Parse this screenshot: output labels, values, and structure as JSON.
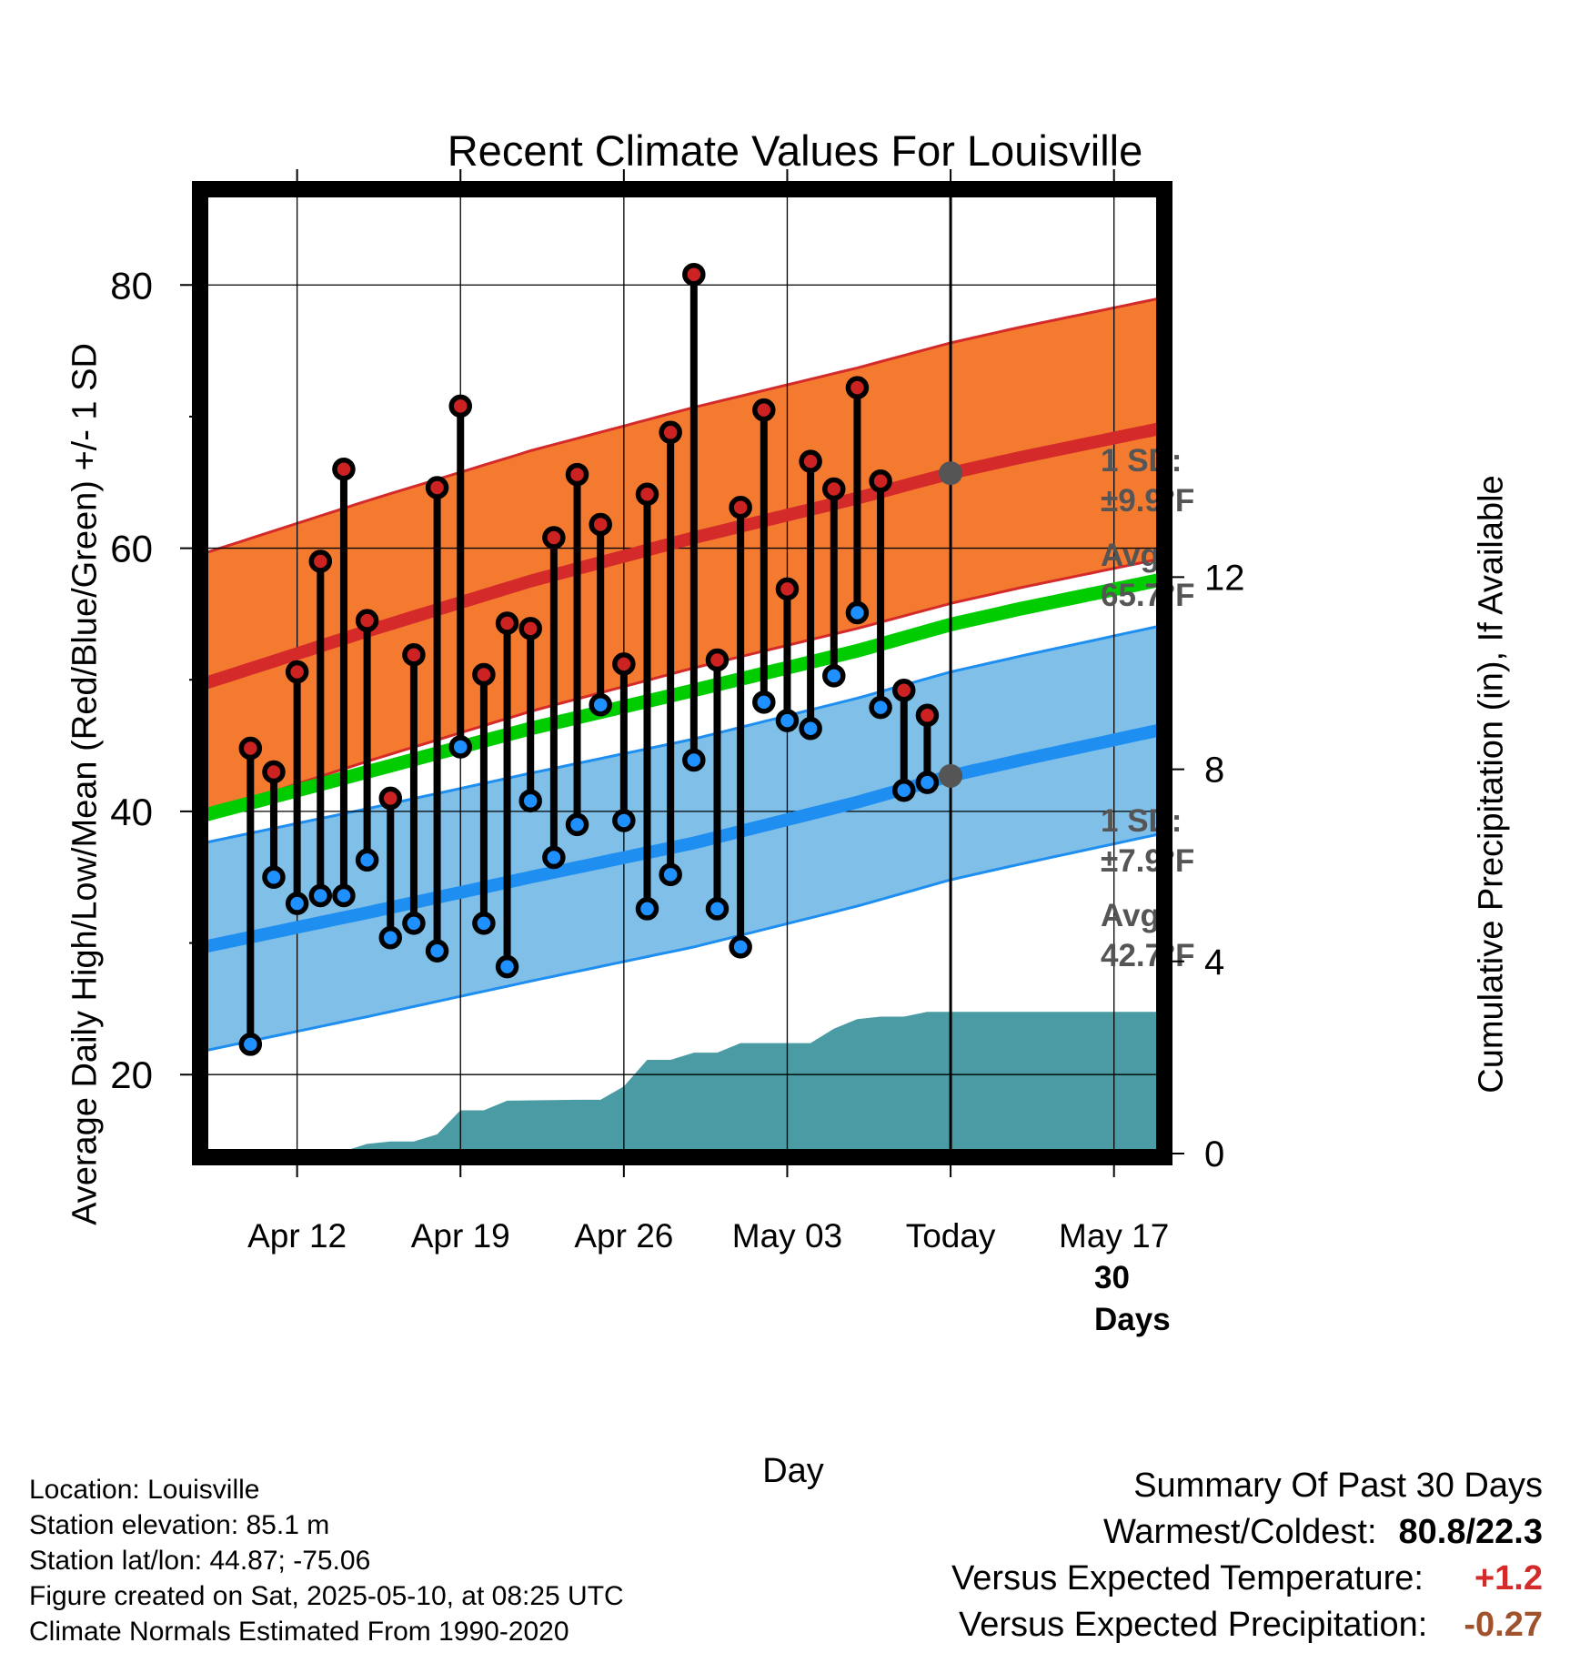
{
  "title": "Recent Climate Values For Louisville",
  "left_axis_label": "Average Daily High/Low/Mean (Red/Blue/Green) +/- 1 SD",
  "right_axis_label": "Cumulative Precipitation (in), If Available",
  "x_axis_label": "Day",
  "colors": {
    "high_band": "#f47a30",
    "high_line": "#d42a2a",
    "low_band": "#80c0e8",
    "low_line": "#1e8ef0",
    "mean_line": "#00cc00",
    "precip": "#4a9ba4",
    "high_marker": "#cc2222",
    "low_marker": "#1e90ff",
    "annotation_text": "#555555"
  },
  "annotations": {
    "high_sd": "1 SD:",
    "high_sd_value": "±9.9°F",
    "high_avg": "Avg:",
    "high_avg_value": "65.7°F",
    "low_sd": "1 SD:",
    "low_sd_value": "±7.9°F",
    "low_avg": "Avg:",
    "low_avg_value": "42.7°F",
    "days_count": "30",
    "days_word": "Days"
  },
  "info": {
    "location": "Location: Louisville",
    "elevation": "Station elevation: 85.1 m",
    "latlon": "Station lat/lon: 44.87; -75.06",
    "created": "Figure created on Sat, 2025-05-10, at 08:25 UTC",
    "normals": "Climate Normals Estimated From 1990-2020"
  },
  "summary": {
    "title": "Summary Of Past 30 Days",
    "warmest_coldest_label": "Warmest/Coldest:",
    "warmest_coldest_value": "80.8/22.3",
    "temp_label": "Versus Expected Temperature:",
    "temp_value": "+1.2",
    "precip_label": "Versus Expected Precipitation:",
    "precip_value": "-0.27"
  },
  "chart_data": {
    "type": "line",
    "x_unit": "day",
    "x_ticks": [
      {
        "date": "2025-04-12",
        "label": "Apr 12"
      },
      {
        "date": "2025-04-19",
        "label": "Apr 19"
      },
      {
        "date": "2025-04-26",
        "label": "Apr 26"
      },
      {
        "date": "2025-05-03",
        "label": "May 03"
      },
      {
        "date": "2025-05-10",
        "label": "Today"
      },
      {
        "date": "2025-05-17",
        "label": "May 17"
      }
    ],
    "xlim": [
      "2025-04-08",
      "2025-05-19"
    ],
    "today": "2025-05-10",
    "left_axis": {
      "ylim": [
        14,
        87
      ],
      "ticks": [
        20,
        40,
        60,
        80
      ],
      "minor_ticks": [
        30,
        50,
        70
      ]
    },
    "right_axis": {
      "ylim": [
        0,
        20
      ],
      "ticks": [
        0,
        4,
        8,
        12
      ]
    },
    "grid": true,
    "daily_observations": [
      {
        "date": "2025-04-10",
        "high": 44.8,
        "low": 22.3
      },
      {
        "date": "2025-04-11",
        "high": 43.0,
        "low": 35.0
      },
      {
        "date": "2025-04-12",
        "high": 50.6,
        "low": 33.0
      },
      {
        "date": "2025-04-13",
        "high": 59.0,
        "low": 33.6
      },
      {
        "date": "2025-04-14",
        "high": 66.0,
        "low": 33.6
      },
      {
        "date": "2025-04-15",
        "high": 54.5,
        "low": 36.3
      },
      {
        "date": "2025-04-16",
        "high": 41.0,
        "low": 30.4
      },
      {
        "date": "2025-04-17",
        "high": 51.9,
        "low": 31.5
      },
      {
        "date": "2025-04-18",
        "high": 64.6,
        "low": 29.4
      },
      {
        "date": "2025-04-19",
        "high": 70.8,
        "low": 44.9
      },
      {
        "date": "2025-04-20",
        "high": 50.4,
        "low": 31.5
      },
      {
        "date": "2025-04-21",
        "high": 54.3,
        "low": 28.2
      },
      {
        "date": "2025-04-22",
        "high": 53.9,
        "low": 40.8
      },
      {
        "date": "2025-04-23",
        "high": 60.8,
        "low": 36.5
      },
      {
        "date": "2025-04-24",
        "high": 65.6,
        "low": 39.0
      },
      {
        "date": "2025-04-25",
        "high": 61.8,
        "low": 48.1
      },
      {
        "date": "2025-04-26",
        "high": 51.2,
        "low": 39.3
      },
      {
        "date": "2025-04-27",
        "high": 64.1,
        "low": 32.6
      },
      {
        "date": "2025-04-28",
        "high": 68.8,
        "low": 35.2
      },
      {
        "date": "2025-04-29",
        "high": 80.8,
        "low": 43.9
      },
      {
        "date": "2025-04-30",
        "high": 51.5,
        "low": 32.6
      },
      {
        "date": "2025-05-01",
        "high": 63.1,
        "low": 29.7
      },
      {
        "date": "2025-05-02",
        "high": 70.5,
        "low": 48.3
      },
      {
        "date": "2025-05-03",
        "high": 56.9,
        "low": 46.9
      },
      {
        "date": "2025-05-04",
        "high": 66.6,
        "low": 46.3
      },
      {
        "date": "2025-05-05",
        "high": 64.5,
        "low": 50.3
      },
      {
        "date": "2025-05-06",
        "high": 72.2,
        "low": 55.1
      },
      {
        "date": "2025-05-07",
        "high": 65.1,
        "low": 47.9
      },
      {
        "date": "2025-05-08",
        "high": 49.2,
        "low": 41.6
      },
      {
        "date": "2025-05-09",
        "high": 47.3,
        "low": 42.2
      }
    ],
    "normals": [
      {
        "date": "2025-04-08",
        "high": 49.7,
        "low": 29.7,
        "mean": 39.7
      },
      {
        "date": "2025-04-15",
        "high": 53.7,
        "low": 32.3,
        "mean": 43.0
      },
      {
        "date": "2025-04-22",
        "high": 57.5,
        "low": 35.0,
        "mean": 46.3
      },
      {
        "date": "2025-04-29",
        "high": 60.8,
        "low": 37.6,
        "mean": 49.2
      },
      {
        "date": "2025-05-06",
        "high": 63.8,
        "low": 40.7,
        "mean": 52.2
      },
      {
        "date": "2025-05-10",
        "high": 65.7,
        "low": 42.7,
        "mean": 54.2
      },
      {
        "date": "2025-05-13",
        "high": 66.9,
        "low": 43.9,
        "mean": 55.4
      },
      {
        "date": "2025-05-19",
        "high": 69.1,
        "low": 46.2,
        "mean": 57.6
      }
    ],
    "sd_high": 9.9,
    "sd_low": 7.9,
    "cumulative_precipitation": [
      {
        "date": "2025-04-08",
        "value": 0.0
      },
      {
        "date": "2025-04-13",
        "value": 0.0
      },
      {
        "date": "2025-04-14",
        "value": 0.05
      },
      {
        "date": "2025-04-15",
        "value": 0.2
      },
      {
        "date": "2025-04-16",
        "value": 0.25
      },
      {
        "date": "2025-04-17",
        "value": 0.25
      },
      {
        "date": "2025-04-18",
        "value": 0.4
      },
      {
        "date": "2025-04-19",
        "value": 0.9
      },
      {
        "date": "2025-04-20",
        "value": 0.9
      },
      {
        "date": "2025-04-21",
        "value": 1.1
      },
      {
        "date": "2025-04-24",
        "value": 1.12
      },
      {
        "date": "2025-04-25",
        "value": 1.12
      },
      {
        "date": "2025-04-26",
        "value": 1.4
      },
      {
        "date": "2025-04-27",
        "value": 1.95
      },
      {
        "date": "2025-04-28",
        "value": 1.95
      },
      {
        "date": "2025-04-29",
        "value": 2.1
      },
      {
        "date": "2025-04-30",
        "value": 2.1
      },
      {
        "date": "2025-05-01",
        "value": 2.3
      },
      {
        "date": "2025-05-04",
        "value": 2.3
      },
      {
        "date": "2025-05-05",
        "value": 2.6
      },
      {
        "date": "2025-05-06",
        "value": 2.8
      },
      {
        "date": "2025-05-07",
        "value": 2.85
      },
      {
        "date": "2025-05-08",
        "value": 2.85
      },
      {
        "date": "2025-05-09",
        "value": 2.95
      },
      {
        "date": "2025-05-10",
        "value": 2.95
      },
      {
        "date": "2025-05-19",
        "value": 2.95
      }
    ]
  }
}
